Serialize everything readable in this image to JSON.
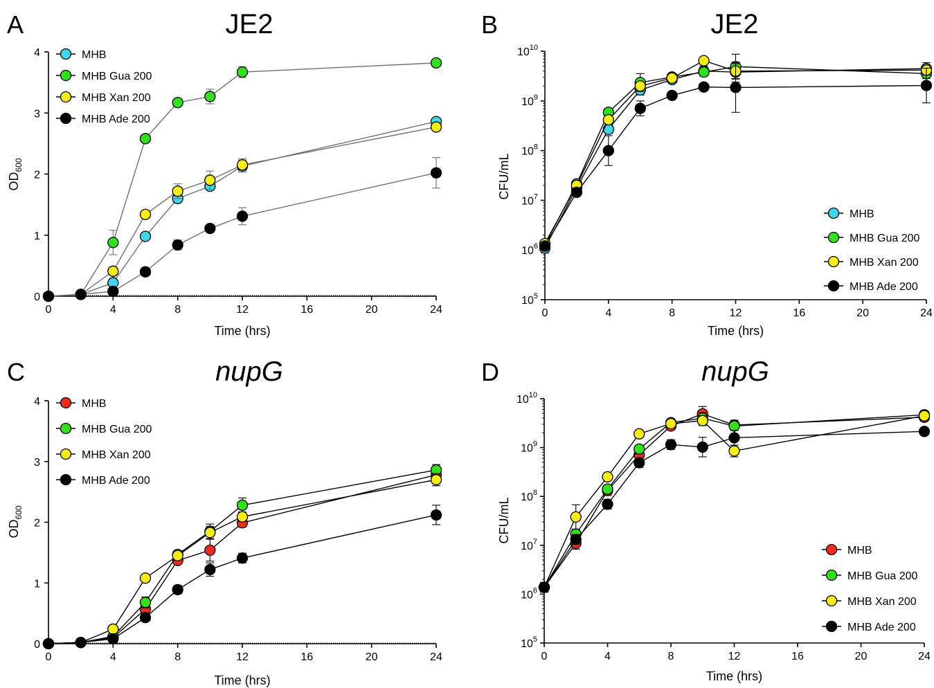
{
  "colors": {
    "MHB_cyan": "#3fd6ee",
    "MHB_red": "#ee2b1c",
    "Gua": "#34e01e",
    "Xan": "#f5ec1a",
    "Ade": "#000000"
  },
  "chart_data": [
    {
      "panel": "A",
      "type": "line",
      "title": "JE2",
      "xlabel": "Time (hrs)",
      "ylabel": "OD",
      "ylabel_sub": "600",
      "xlim": [
        0,
        24
      ],
      "ylim": [
        0,
        4
      ],
      "yscale": "linear",
      "xticks": [
        0,
        4,
        8,
        12,
        16,
        20,
        24
      ],
      "yticks": [
        0,
        1,
        2,
        3,
        4
      ],
      "ytick_labels": [
        "0",
        "1",
        "2",
        "3",
        "4"
      ],
      "line_color": "#707070",
      "legend_position": "top-left",
      "x": [
        0,
        2,
        4,
        6,
        8,
        10,
        12,
        24
      ],
      "series": [
        {
          "name": "MHB",
          "color": "#3fd6ee",
          "values": [
            0,
            0.03,
            0.22,
            0.98,
            1.6,
            1.8,
            2.13,
            2.86
          ],
          "errors": [
            0,
            0.02,
            0.05,
            0.04,
            0.06,
            0.05,
            0.1,
            0.05
          ]
        },
        {
          "name": "MHB Gua 200",
          "color": "#34e01e",
          "values": [
            0,
            0.03,
            0.88,
            2.58,
            3.17,
            3.27,
            3.67,
            3.82
          ],
          "errors": [
            0,
            0.02,
            0.2,
            0.05,
            0.05,
            0.12,
            0.09,
            0.03
          ]
        },
        {
          "name": "MHB Xan 200",
          "color": "#f5ec1a",
          "values": [
            0,
            0.03,
            0.41,
            1.34,
            1.72,
            1.9,
            2.15,
            2.77
          ],
          "errors": [
            0,
            0.02,
            0.05,
            0.04,
            0.12,
            0.15,
            0.1,
            0.05
          ]
        },
        {
          "name": "MHB Ade 200",
          "color": "#000000",
          "values": [
            0,
            0.03,
            0.08,
            0.4,
            0.84,
            1.11,
            1.31,
            2.02
          ],
          "errors": [
            0,
            0.02,
            0.03,
            0.04,
            0.08,
            0.05,
            0.14,
            0.25
          ]
        }
      ]
    },
    {
      "panel": "B",
      "type": "line",
      "title": "JE2",
      "xlabel": "Time (hrs)",
      "ylabel": "CFU/mL",
      "xlim": [
        0,
        24
      ],
      "ylim": [
        5,
        10
      ],
      "yscale": "log10",
      "xticks": [
        0,
        4,
        8,
        12,
        16,
        20,
        24
      ],
      "yticks": [
        5,
        6,
        7,
        8,
        9,
        10
      ],
      "ytick_labels": [
        "10^5",
        "10^6",
        "10^7",
        "10^8",
        "10^9",
        "10^10"
      ],
      "line_color": "#000000",
      "legend_position": "bottom-right",
      "x": [
        0,
        2,
        4,
        6,
        8,
        10,
        12,
        24
      ],
      "series": [
        {
          "name": "MHB",
          "color": "#3fd6ee",
          "values": [
            6.04,
            7.25,
            8.43,
            9.22,
            9.43,
            9.6,
            9.58,
            9.65
          ],
          "errors": [
            0.1,
            0.05,
            0.08,
            0.1,
            0.06,
            0.1,
            0.2,
            0.12
          ]
        },
        {
          "name": "MHB Gua 200",
          "color": "#34e01e",
          "values": [
            6.1,
            7.33,
            8.77,
            9.37,
            9.48,
            9.58,
            9.69,
            9.55
          ],
          "errors": [
            0.05,
            0.05,
            0.06,
            0.18,
            0.06,
            0.08,
            0.25,
            0.1
          ]
        },
        {
          "name": "MHB Xan 200",
          "color": "#f5ec1a",
          "values": [
            6.13,
            7.3,
            8.62,
            9.3,
            9.46,
            9.81,
            9.6,
            9.62
          ],
          "errors": [
            0.05,
            0.05,
            0.08,
            0.08,
            0.06,
            0.05,
            0.15,
            0.1
          ]
        },
        {
          "name": "MHB Ade 200",
          "color": "#000000",
          "values": [
            6.08,
            7.16,
            8.0,
            8.85,
            9.11,
            9.28,
            9.27,
            9.31
          ],
          "errors": [
            0.05,
            0.05,
            0.3,
            0.15,
            0.06,
            0.06,
            0.5,
            0.35
          ]
        }
      ]
    },
    {
      "panel": "C",
      "type": "line",
      "title": "nupG",
      "title_italic": true,
      "xlabel": "Time (hrs)",
      "ylabel": "OD",
      "ylabel_sub": "600",
      "xlim": [
        0,
        24
      ],
      "ylim": [
        0,
        4
      ],
      "yscale": "linear",
      "xticks": [
        0,
        4,
        8,
        12,
        16,
        20,
        24
      ],
      "yticks": [
        0,
        1,
        2,
        3,
        4
      ],
      "ytick_labels": [
        "0",
        "1",
        "2",
        "3",
        "4"
      ],
      "line_color": "#000000",
      "legend_position": "top-left",
      "x": [
        0,
        2,
        4,
        6,
        8,
        10,
        12,
        24
      ],
      "series": [
        {
          "name": "MHB",
          "color": "#ee2b1c",
          "values": [
            0,
            0.02,
            0.1,
            0.57,
            1.37,
            1.54,
            1.99,
            2.78
          ],
          "errors": [
            0,
            0.02,
            0.04,
            0.06,
            0.05,
            0.18,
            0.07,
            0.08
          ]
        },
        {
          "name": "MHB Gua 200",
          "color": "#34e01e",
          "values": [
            0,
            0.02,
            0.12,
            0.68,
            1.47,
            1.85,
            2.28,
            2.86
          ],
          "errors": [
            0,
            0.02,
            0.04,
            0.09,
            0.06,
            0.12,
            0.12,
            0.09
          ]
        },
        {
          "name": "MHB Xan 200",
          "color": "#f5ec1a",
          "values": [
            0,
            0.02,
            0.24,
            1.08,
            1.45,
            1.83,
            2.09,
            2.7
          ],
          "errors": [
            0,
            0.02,
            0.04,
            0.06,
            0.07,
            0.1,
            0.08,
            0.1
          ]
        },
        {
          "name": "MHB Ade 200",
          "color": "#000000",
          "values": [
            0,
            0.02,
            0.08,
            0.43,
            0.89,
            1.22,
            1.41,
            2.12
          ],
          "errors": [
            0,
            0.02,
            0.03,
            0.05,
            0.07,
            0.11,
            0.08,
            0.16
          ]
        }
      ]
    },
    {
      "panel": "D",
      "type": "line",
      "title": "nupG",
      "title_italic": true,
      "xlabel": "Time (hrs)",
      "ylabel": "CFU/mL",
      "xlim": [
        0,
        24
      ],
      "ylim": [
        5,
        10
      ],
      "yscale": "log10",
      "xticks": [
        0,
        4,
        8,
        12,
        16,
        20,
        24
      ],
      "yticks": [
        5,
        6,
        7,
        8,
        9,
        10
      ],
      "ytick_labels": [
        "10^5",
        "10^6",
        "10^7",
        "10^8",
        "10^9",
        "10^10"
      ],
      "line_color": "#000000",
      "legend_position": "bottom-right",
      "x": [
        0,
        2,
        4,
        6,
        8,
        10,
        12,
        24
      ],
      "series": [
        {
          "name": "MHB",
          "color": "#ee2b1c",
          "values": [
            6.14,
            7.04,
            8.12,
            8.85,
            9.44,
            9.69,
            9.46,
            9.62
          ],
          "errors": [
            0.1,
            0.12,
            0.1,
            0.08,
            0.08,
            0.15,
            0.1,
            0.08
          ]
        },
        {
          "name": "MHB Gua 200",
          "color": "#34e01e",
          "values": [
            6.14,
            7.23,
            8.15,
            8.97,
            9.51,
            9.6,
            9.44,
            9.67
          ],
          "errors": [
            0.1,
            0.1,
            0.08,
            0.06,
            0.06,
            0.12,
            0.08,
            0.08
          ]
        },
        {
          "name": "MHB Xan 200",
          "color": "#f5ec1a",
          "values": [
            6.14,
            7.58,
            8.4,
            9.28,
            9.49,
            9.55,
            8.93,
            9.65
          ],
          "errors": [
            0.08,
            0.25,
            0.06,
            0.05,
            0.06,
            0.1,
            0.12,
            0.08
          ]
        },
        {
          "name": "MHB Ade 200",
          "color": "#000000",
          "values": [
            6.14,
            7.12,
            7.84,
            8.69,
            9.06,
            9.01,
            9.2,
            9.33
          ],
          "errors": [
            0.08,
            0.1,
            0.1,
            0.1,
            0.1,
            0.2,
            0.15,
            0.06
          ]
        }
      ]
    }
  ]
}
